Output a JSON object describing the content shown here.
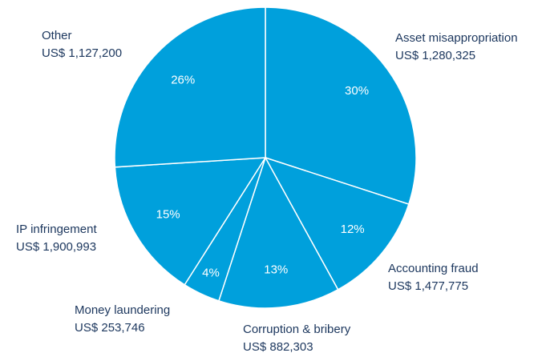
{
  "chart_data": {
    "type": "pie",
    "categories": [
      "Asset misappropriation",
      "Accounting fraud",
      "Corruption & bribery",
      "Money laundering",
      "IP infringement",
      "Other"
    ],
    "amounts": [
      "US$ 1,280,325",
      "US$ 1,477,775",
      "US$ 882,303",
      "US$ 253,746",
      "US$ 1,900,993",
      "US$ 1,127,200"
    ],
    "values": [
      30,
      12,
      13,
      4,
      15,
      26
    ],
    "value_labels": [
      "30%",
      "12%",
      "13%",
      "4%",
      "15%",
      "26%"
    ],
    "color": "#00a0dc"
  }
}
